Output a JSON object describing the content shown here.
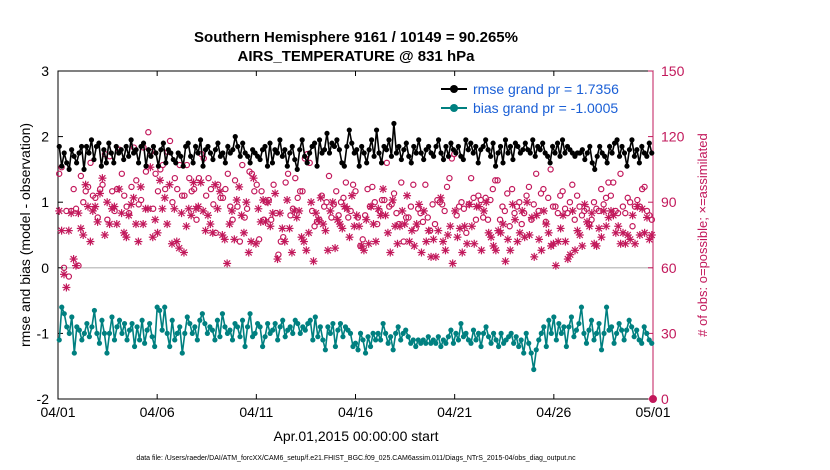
{
  "chart_data": {
    "type": "line",
    "title": [
      "Southern Hemisphere 9161 / 10149 = 90.265%",
      "AIRS_TEMPERATURE @ 831 hPa"
    ],
    "xlabel": "Apr.01,2015 00:00:00 start",
    "ylabel": "rmse and bias (model - observation)",
    "ylabel_right": "# of obs: o=possible; ×=assimilated",
    "xlim": [
      0,
      30
    ],
    "ylim": [
      -2,
      3
    ],
    "ylim_right": [
      0,
      150
    ],
    "x_ticks": [
      {
        "value": 0,
        "label": "04/01"
      },
      {
        "value": 5,
        "label": "04/06"
      },
      {
        "value": 10,
        "label": "04/11"
      },
      {
        "value": 15,
        "label": "04/16"
      },
      {
        "value": 20,
        "label": "04/21"
      },
      {
        "value": 25,
        "label": "04/26"
      },
      {
        "value": 30,
        "label": "05/01"
      }
    ],
    "y_ticks": [
      -2,
      -1,
      0,
      1,
      2,
      3
    ],
    "y_ticks_right": [
      0,
      30,
      60,
      90,
      120,
      150
    ],
    "zero_line": 0,
    "colors": {
      "rmse": "#000000",
      "bias": "#008080",
      "obs": "#c2185b",
      "zero_line": "#b4b4b4",
      "legend_text": "#1a5fd6"
    },
    "legend": {
      "location": "top-right",
      "entries": [
        "rmse grand pr = 1.7356",
        "bias grand pr = -1.0005"
      ]
    },
    "series": [
      {
        "name": "rmse",
        "values": [
          1.85,
          1.55,
          1.75,
          1.6,
          1.5,
          1.8,
          1.7,
          1.6,
          1.75,
          1.85,
          1.5,
          1.85,
          1.75,
          1.95,
          1.65,
          1.85,
          1.9,
          1.55,
          1.8,
          1.6,
          1.9,
          1.75,
          1.6,
          1.85,
          1.75,
          1.8,
          1.65,
          1.85,
          1.7,
          1.95,
          1.75,
          1.8,
          1.6,
          1.85,
          1.9,
          1.55,
          1.8,
          1.7,
          1.85,
          1.75,
          1.55,
          1.8,
          1.9,
          1.6,
          1.8,
          1.75,
          1.65,
          1.6,
          1.75,
          1.7,
          1.55,
          1.85,
          1.9,
          1.7,
          1.6,
          1.85,
          1.75,
          1.95,
          1.55,
          1.8,
          1.85,
          1.75,
          1.65,
          1.8,
          1.9,
          1.7,
          1.75,
          1.6,
          1.85,
          1.75,
          1.8,
          2.0,
          1.85,
          1.7,
          1.9,
          1.75,
          1.7,
          1.6,
          1.8,
          1.75,
          1.7,
          1.65,
          1.8,
          1.85,
          1.55,
          1.9,
          1.6,
          1.8,
          1.75,
          1.95,
          1.7,
          1.8,
          1.55,
          1.75,
          1.85,
          1.65,
          1.5,
          1.8,
          1.95,
          1.7,
          1.6,
          1.75,
          1.85,
          1.9,
          1.55,
          1.95,
          1.75,
          1.8,
          2.05,
          1.75,
          1.9,
          1.85,
          1.95,
          1.8,
          1.6,
          1.55,
          1.85,
          2.1,
          1.9,
          1.75,
          1.8,
          1.55,
          1.85,
          1.75,
          1.6,
          1.8,
          1.95,
          1.7,
          2.1,
          1.75,
          1.6,
          1.85,
          1.8,
          1.95,
          1.7,
          2.2,
          1.75,
          1.85,
          1.65,
          1.8,
          1.9,
          1.7,
          1.6,
          1.85,
          1.75,
          1.95,
          1.75,
          1.65,
          1.8,
          1.85,
          1.75,
          1.7,
          1.85,
          1.95,
          1.75,
          1.65,
          1.85,
          1.7,
          1.9,
          1.8,
          1.75,
          1.85,
          1.7,
          1.65,
          1.95,
          1.8,
          1.9,
          1.75,
          1.85,
          1.6,
          1.8,
          1.85,
          1.95,
          1.8,
          1.7,
          1.9,
          1.55,
          1.75,
          1.85,
          1.6,
          1.95,
          1.75,
          1.85,
          1.65,
          1.9,
          1.85,
          1.75,
          1.8,
          1.9,
          1.8,
          1.75,
          1.95,
          1.7,
          1.85,
          1.8,
          1.9,
          1.75,
          1.7,
          1.6,
          1.85,
          1.75,
          1.9,
          1.7,
          1.95,
          1.75,
          1.85,
          1.8,
          1.75,
          1.7,
          1.75,
          1.75,
          1.8,
          1.65,
          1.75,
          1.85,
          1.6,
          1.5,
          1.7,
          1.85,
          1.75,
          1.7,
          1.6,
          1.85,
          1.75,
          1.9,
          1.95,
          1.7,
          1.85,
          1.75,
          1.55,
          1.8,
          1.95,
          1.7,
          1.8,
          1.6,
          1.85,
          1.75,
          1.7,
          1.9,
          1.75
        ]
      },
      {
        "name": "bias",
        "values": [
          -1.1,
          -0.6,
          -0.7,
          -0.9,
          -1.0,
          -0.75,
          -1.3,
          -0.9,
          -0.95,
          -1.1,
          -1.0,
          -0.85,
          -1.05,
          -0.9,
          -0.65,
          -1.0,
          -1.15,
          -0.8,
          -1.0,
          -1.3,
          -1.0,
          -0.75,
          -1.1,
          -0.9,
          -0.8,
          -1.0,
          -0.85,
          -1.1,
          -0.95,
          -0.85,
          -1.2,
          -0.9,
          -1.1,
          -0.8,
          -1.15,
          -0.95,
          -0.85,
          -1.05,
          -1.2,
          -0.6,
          -0.65,
          -0.95,
          -0.6,
          -1.0,
          -1.2,
          -0.8,
          -1.1,
          -1.0,
          -0.9,
          -1.3,
          -1.0,
          -0.75,
          -0.85,
          -1.0,
          -0.9,
          -1.1,
          -0.8,
          -0.7,
          -0.85,
          -1.0,
          -0.9,
          -0.95,
          -1.1,
          -0.8,
          -1.05,
          -0.7,
          -0.9,
          -1.0,
          -0.95,
          -1.1,
          -0.85,
          -0.9,
          -1.05,
          -0.8,
          -1.2,
          -0.9,
          -0.7,
          -1.05,
          -1.0,
          -0.85,
          -0.9,
          -1.2,
          -1.05,
          -0.85,
          -1.0,
          -0.95,
          -0.85,
          -1.1,
          -0.9,
          -0.8,
          -1.05,
          -0.95,
          -0.9,
          -1.0,
          -0.8,
          -0.85,
          -1.0,
          -0.9,
          -0.95,
          -0.85,
          -0.8,
          -1.1,
          -0.75,
          -1.05,
          -0.9,
          -1.1,
          -1.25,
          -0.9,
          -1.0,
          -0.85,
          -1.2,
          -0.95,
          -0.85,
          -1.05,
          -0.9,
          -0.95,
          -1.0,
          -1.2,
          -1.15,
          -1.25,
          -1.0,
          -1.1,
          -1.3,
          -1.05,
          -1.2,
          -1.0,
          -1.1,
          -1.0,
          -1.1,
          -0.85,
          -1.0,
          -1.15,
          -1.05,
          -1.25,
          -1.0,
          -0.9,
          -1.1,
          -1.0,
          -0.95,
          -1.05,
          -1.15,
          -1.1,
          -1.2,
          -1.1,
          -1.15,
          -1.1,
          -1.15,
          -1.05,
          -1.15,
          -1.1,
          -1.15,
          -1.05,
          -1.2,
          -1.1,
          -1.15,
          -1.05,
          -0.95,
          -1.15,
          -1.0,
          -1.1,
          -0.85,
          -1.05,
          -1.0,
          -1.1,
          -1.15,
          -0.95,
          -1.1,
          -1.0,
          -1.2,
          -1.0,
          -0.9,
          -1.05,
          -1.15,
          -1.0,
          -1.1,
          -1.2,
          -1.0,
          -1.15,
          -1.1,
          -1.05,
          -1.0,
          -1.15,
          -1.05,
          -1.2,
          -1.1,
          -1.3,
          -1.0,
          -1.15,
          -1.3,
          -1.55,
          -1.25,
          -1.1,
          -1.0,
          -0.9,
          -1.2,
          -0.8,
          -1.0,
          -0.75,
          -1.1,
          -0.85,
          -1.0,
          -0.9,
          -1.2,
          -0.9,
          -0.75,
          -1.05,
          -0.95,
          -0.85,
          -0.6,
          -1.0,
          -1.15,
          -0.95,
          -0.8,
          -1.1,
          -1.0,
          -0.85,
          -1.25,
          -1.0,
          -0.6,
          -0.95,
          -0.9,
          -1.15,
          -1.0,
          -0.85,
          -0.95,
          -1.1,
          -0.95,
          -0.8,
          -0.9,
          -1.05,
          -0.95,
          -1.1,
          -1.15,
          -0.9,
          -1.0,
          -1.1,
          -1.15
        ]
      }
    ],
    "obs_possible": [
      103,
      106,
      60,
      86,
      56,
      86,
      96,
      87,
      61,
      102,
      90,
      95,
      97,
      108,
      93,
      92,
      83,
      96,
      98,
      112,
      82,
      111,
      95,
      86,
      96,
      114,
      103,
      93,
      88,
      85,
      97,
      115,
      100,
      89,
      91,
      115,
      104,
      122,
      113,
      87,
      103,
      95,
      105,
      107,
      96,
      113,
      118,
      90,
      101,
      96,
      107,
      93,
      93,
      107,
      101,
      95,
      96,
      82,
      101,
      112,
      110,
      93,
      101,
      96,
      89,
      76,
      98,
      92,
      92,
      96,
      103,
      88,
      82,
      100,
      88,
      72,
      107,
      83,
      87,
      104,
      103,
      95,
      98,
      73,
      95,
      82,
      90,
      91,
      82,
      98,
      85,
      66,
      72,
      74,
      99,
      103,
      84,
      87,
      101,
      92,
      95,
      95,
      110,
      112,
      108,
      86,
      79,
      81,
      82,
      93,
      88,
      90,
      102,
      83,
      89,
      95,
      84,
      90,
      92,
      99,
      83,
      86,
      98,
      95,
      83,
      70,
      73,
      84,
      96,
      88,
      97,
      90,
      80,
      86,
      91,
      91,
      108,
      88,
      89,
      94,
      85,
      80,
      99,
      72,
      83,
      83,
      88,
      98,
      78,
      87,
      85,
      81,
      98,
      83,
      77,
      89,
      80,
      91,
      90,
      89,
      86,
      97,
      101,
      110,
      112,
      84,
      88,
      90,
      87,
      76,
      89,
      101,
      92,
      82,
      93,
      91,
      83,
      92,
      82,
      91,
      96,
      100,
      100,
      82,
      88,
      86,
      94,
      79,
      96,
      85,
      88,
      90,
      80,
      85,
      93,
      97,
      82,
      89,
      103,
      86,
      94,
      96,
      81,
      92,
      105,
      88,
      88,
      85,
      93,
      95,
      87,
      85,
      90,
      98,
      82,
      93,
      88,
      84,
      86,
      87,
      80,
      82,
      90,
      87,
      86,
      96,
      89,
      92,
      99,
      93,
      99,
      86,
      85,
      103,
      88,
      85,
      92,
      90,
      79,
      88,
      91,
      88,
      96,
      97,
      86,
      84,
      82
    ],
    "obs_assimilated": [
      86,
      77,
      57,
      51,
      77,
      85,
      64,
      61,
      85,
      78,
      75,
      98,
      88,
      72,
      86,
      88,
      81,
      94,
      101,
      75,
      90,
      80,
      87,
      88,
      80,
      96,
      85,
      76,
      74,
      84,
      89,
      92,
      80,
      72,
      97,
      80,
      87,
      87,
      106,
      74,
      82,
      76,
      100,
      87,
      92,
      80,
      98,
      71,
      87,
      72,
      69,
      85,
      67,
      79,
      87,
      84,
      99,
      87,
      88,
      99,
      86,
      77,
      84,
      80,
      76,
      98,
      87,
      95,
      75,
      73,
      62,
      80,
      86,
      73,
      91,
      97,
      84,
      76,
      90,
      67,
      72,
      101,
      71,
      87,
      81,
      91,
      81,
      90,
      79,
      85,
      94,
      64,
      85,
      78,
      72,
      91,
      78,
      67,
      86,
      83,
      86,
      74,
      72,
      68,
      76,
      90,
      63,
      85,
      82,
      92,
      80,
      77,
      68,
      86,
      90,
      69,
      82,
      80,
      78,
      88,
      87,
      74,
      93,
      79,
      84,
      79,
      70,
      68,
      82,
      71,
      88,
      80,
      72,
      87,
      84,
      96,
      84,
      76,
      67,
      91,
      79,
      71,
      79,
      86,
      80,
      93,
      72,
      77,
      70,
      80,
      89,
      67,
      86,
      72,
      77,
      65,
      73,
      65,
      77,
      92,
      72,
      68,
      75,
      79,
      62,
      86,
      74,
      78,
      67,
      79,
      71,
      89,
      79,
      71,
      88,
      88,
      68,
      86,
      90,
      76,
      74,
      70,
      68,
      77,
      76,
      80,
      63,
      73,
      68,
      89,
      82,
      72,
      76,
      86,
      74,
      90,
      75,
      83,
      65,
      84,
      73,
      68,
      86,
      80,
      76,
      70,
      71,
      61,
      72,
      78,
      84,
      72,
      64,
      66,
      86,
      68,
      77,
      75,
      70,
      89,
      81,
      79,
      85,
      71,
      70,
      78,
      74,
      86,
      79,
      83,
      86,
      84,
      76,
      79,
      71,
      76,
      71,
      75,
      73,
      84,
      71,
      88,
      75,
      87,
      76,
      83,
      73,
      75
    ],
    "footnote": "data file: /Users/raeder/DAI/ATM_forcXX/CAM6_setup/f.e21.FHIST_BGC.f09_025.CAM6assim.011/Diags_NTrS_2015-04/obs_diag_output.nc"
  }
}
